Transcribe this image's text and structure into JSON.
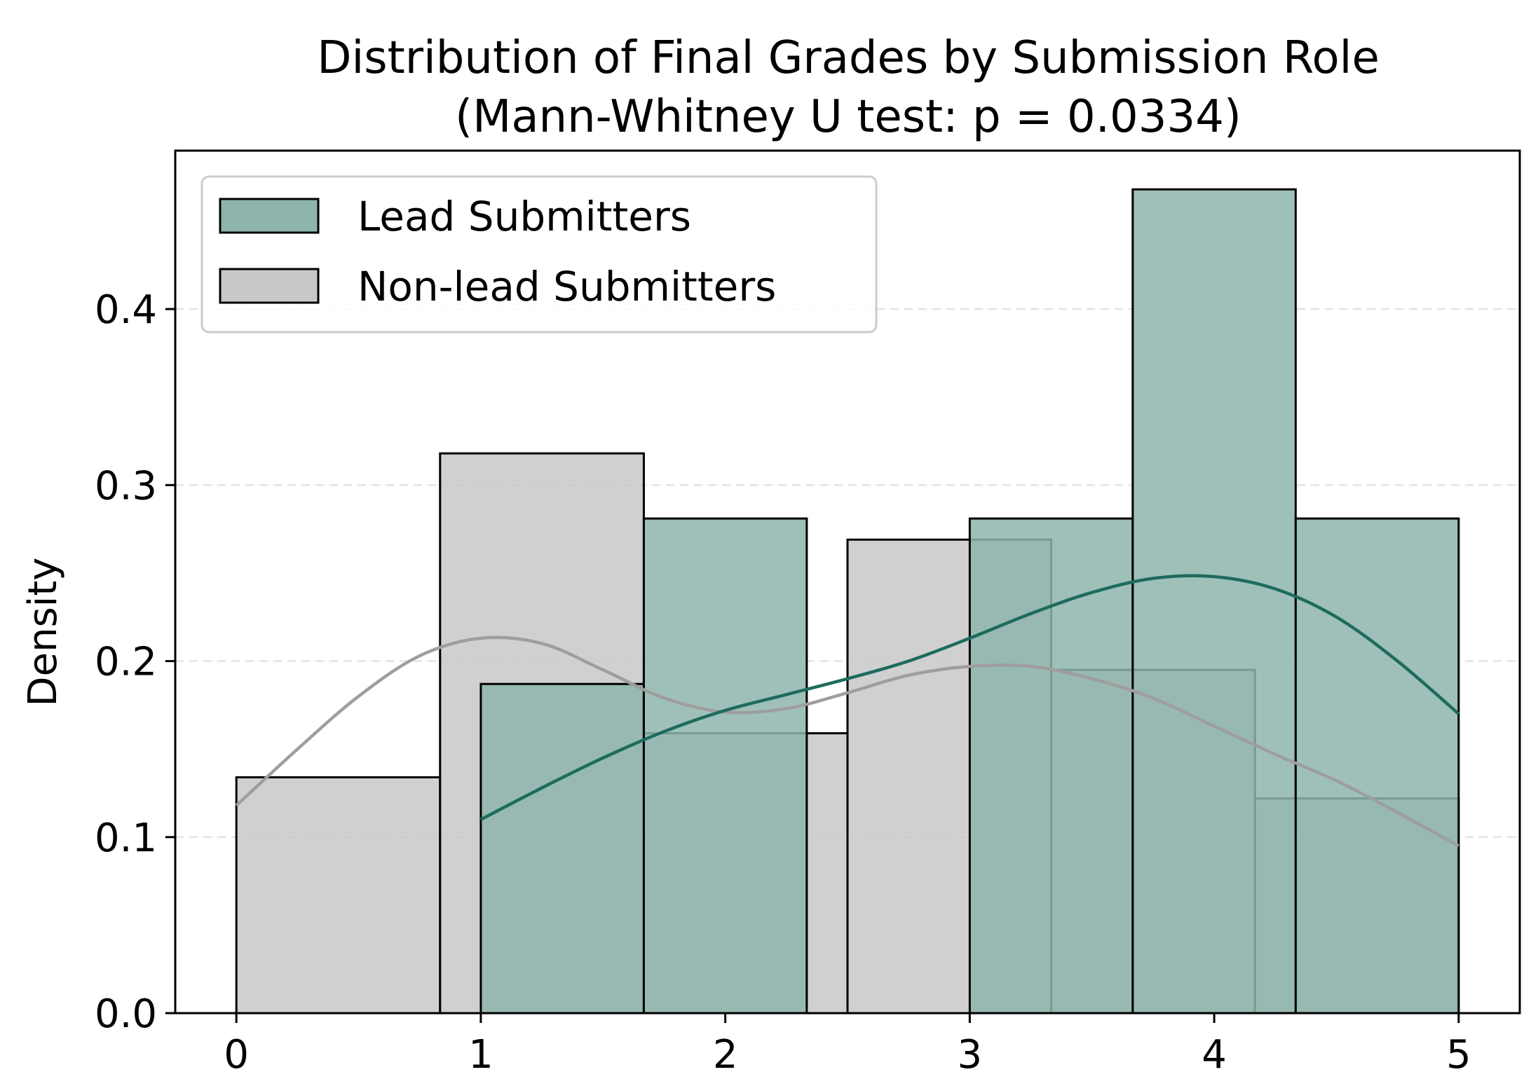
{
  "chart_data": {
    "type": "histogram",
    "title": "Distribution of Final Grades by Submission Role",
    "subtitle": "(Mann-Whitney U test: p = 0.0334)",
    "xlabel": "",
    "ylabel": "Density",
    "xlim": [
      -0.25,
      5.25
    ],
    "ylim": [
      0,
      0.49
    ],
    "xticks": [
      0,
      1,
      2,
      3,
      4,
      5
    ],
    "yticks": [
      0.0,
      0.1,
      0.2,
      0.3,
      0.4
    ],
    "grid": "y-dashed",
    "legend_position": "top-left",
    "series": [
      {
        "name": "Non-lead Submitters",
        "color": "#c8c8c8",
        "kde_color": "#9e9e9e",
        "bins": [
          {
            "x0": 0.0,
            "x1": 0.8333,
            "density": 0.134
          },
          {
            "x0": 0.8333,
            "x1": 1.6667,
            "density": 0.318
          },
          {
            "x0": 1.6667,
            "x1": 2.5,
            "density": 0.159
          },
          {
            "x0": 2.5,
            "x1": 3.3333,
            "density": 0.269
          },
          {
            "x0": 3.3333,
            "x1": 4.1667,
            "density": 0.195
          },
          {
            "x0": 4.1667,
            "x1": 5.0,
            "density": 0.122
          }
        ],
        "kde": [
          {
            "x": 0.0,
            "y": 0.118
          },
          {
            "x": 0.25,
            "y": 0.15
          },
          {
            "x": 0.5,
            "y": 0.18
          },
          {
            "x": 0.75,
            "y": 0.203
          },
          {
            "x": 1.0,
            "y": 0.213
          },
          {
            "x": 1.25,
            "y": 0.21
          },
          {
            "x": 1.5,
            "y": 0.195
          },
          {
            "x": 1.75,
            "y": 0.179
          },
          {
            "x": 2.0,
            "y": 0.171
          },
          {
            "x": 2.25,
            "y": 0.173
          },
          {
            "x": 2.5,
            "y": 0.182
          },
          {
            "x": 2.75,
            "y": 0.192
          },
          {
            "x": 3.0,
            "y": 0.197
          },
          {
            "x": 3.25,
            "y": 0.197
          },
          {
            "x": 3.5,
            "y": 0.19
          },
          {
            "x": 3.75,
            "y": 0.179
          },
          {
            "x": 4.0,
            "y": 0.163
          },
          {
            "x": 4.25,
            "y": 0.147
          },
          {
            "x": 4.5,
            "y": 0.132
          },
          {
            "x": 4.75,
            "y": 0.114
          },
          {
            "x": 5.0,
            "y": 0.095
          }
        ]
      },
      {
        "name": "Lead Submitters",
        "color": "#8db5ab",
        "kde_color": "#1d6b5e",
        "bins": [
          {
            "x0": 1.0,
            "x1": 1.6667,
            "density": 0.187
          },
          {
            "x0": 1.6667,
            "x1": 2.3333,
            "density": 0.281
          },
          {
            "x0": 2.3333,
            "x1": 3.0,
            "density": 0.0
          },
          {
            "x0": 3.0,
            "x1": 3.6667,
            "density": 0.281
          },
          {
            "x0": 3.6667,
            "x1": 4.3333,
            "density": 0.468
          },
          {
            "x0": 4.3333,
            "x1": 5.0,
            "density": 0.281
          }
        ],
        "kde": [
          {
            "x": 1.0,
            "y": 0.11
          },
          {
            "x": 1.25,
            "y": 0.128
          },
          {
            "x": 1.5,
            "y": 0.145
          },
          {
            "x": 1.75,
            "y": 0.16
          },
          {
            "x": 2.0,
            "y": 0.172
          },
          {
            "x": 2.25,
            "y": 0.181
          },
          {
            "x": 2.5,
            "y": 0.19
          },
          {
            "x": 2.75,
            "y": 0.2
          },
          {
            "x": 3.0,
            "y": 0.213
          },
          {
            "x": 3.25,
            "y": 0.227
          },
          {
            "x": 3.5,
            "y": 0.239
          },
          {
            "x": 3.75,
            "y": 0.247
          },
          {
            "x": 4.0,
            "y": 0.248
          },
          {
            "x": 4.25,
            "y": 0.241
          },
          {
            "x": 4.5,
            "y": 0.225
          },
          {
            "x": 4.75,
            "y": 0.2
          },
          {
            "x": 5.0,
            "y": 0.17
          }
        ]
      }
    ]
  }
}
